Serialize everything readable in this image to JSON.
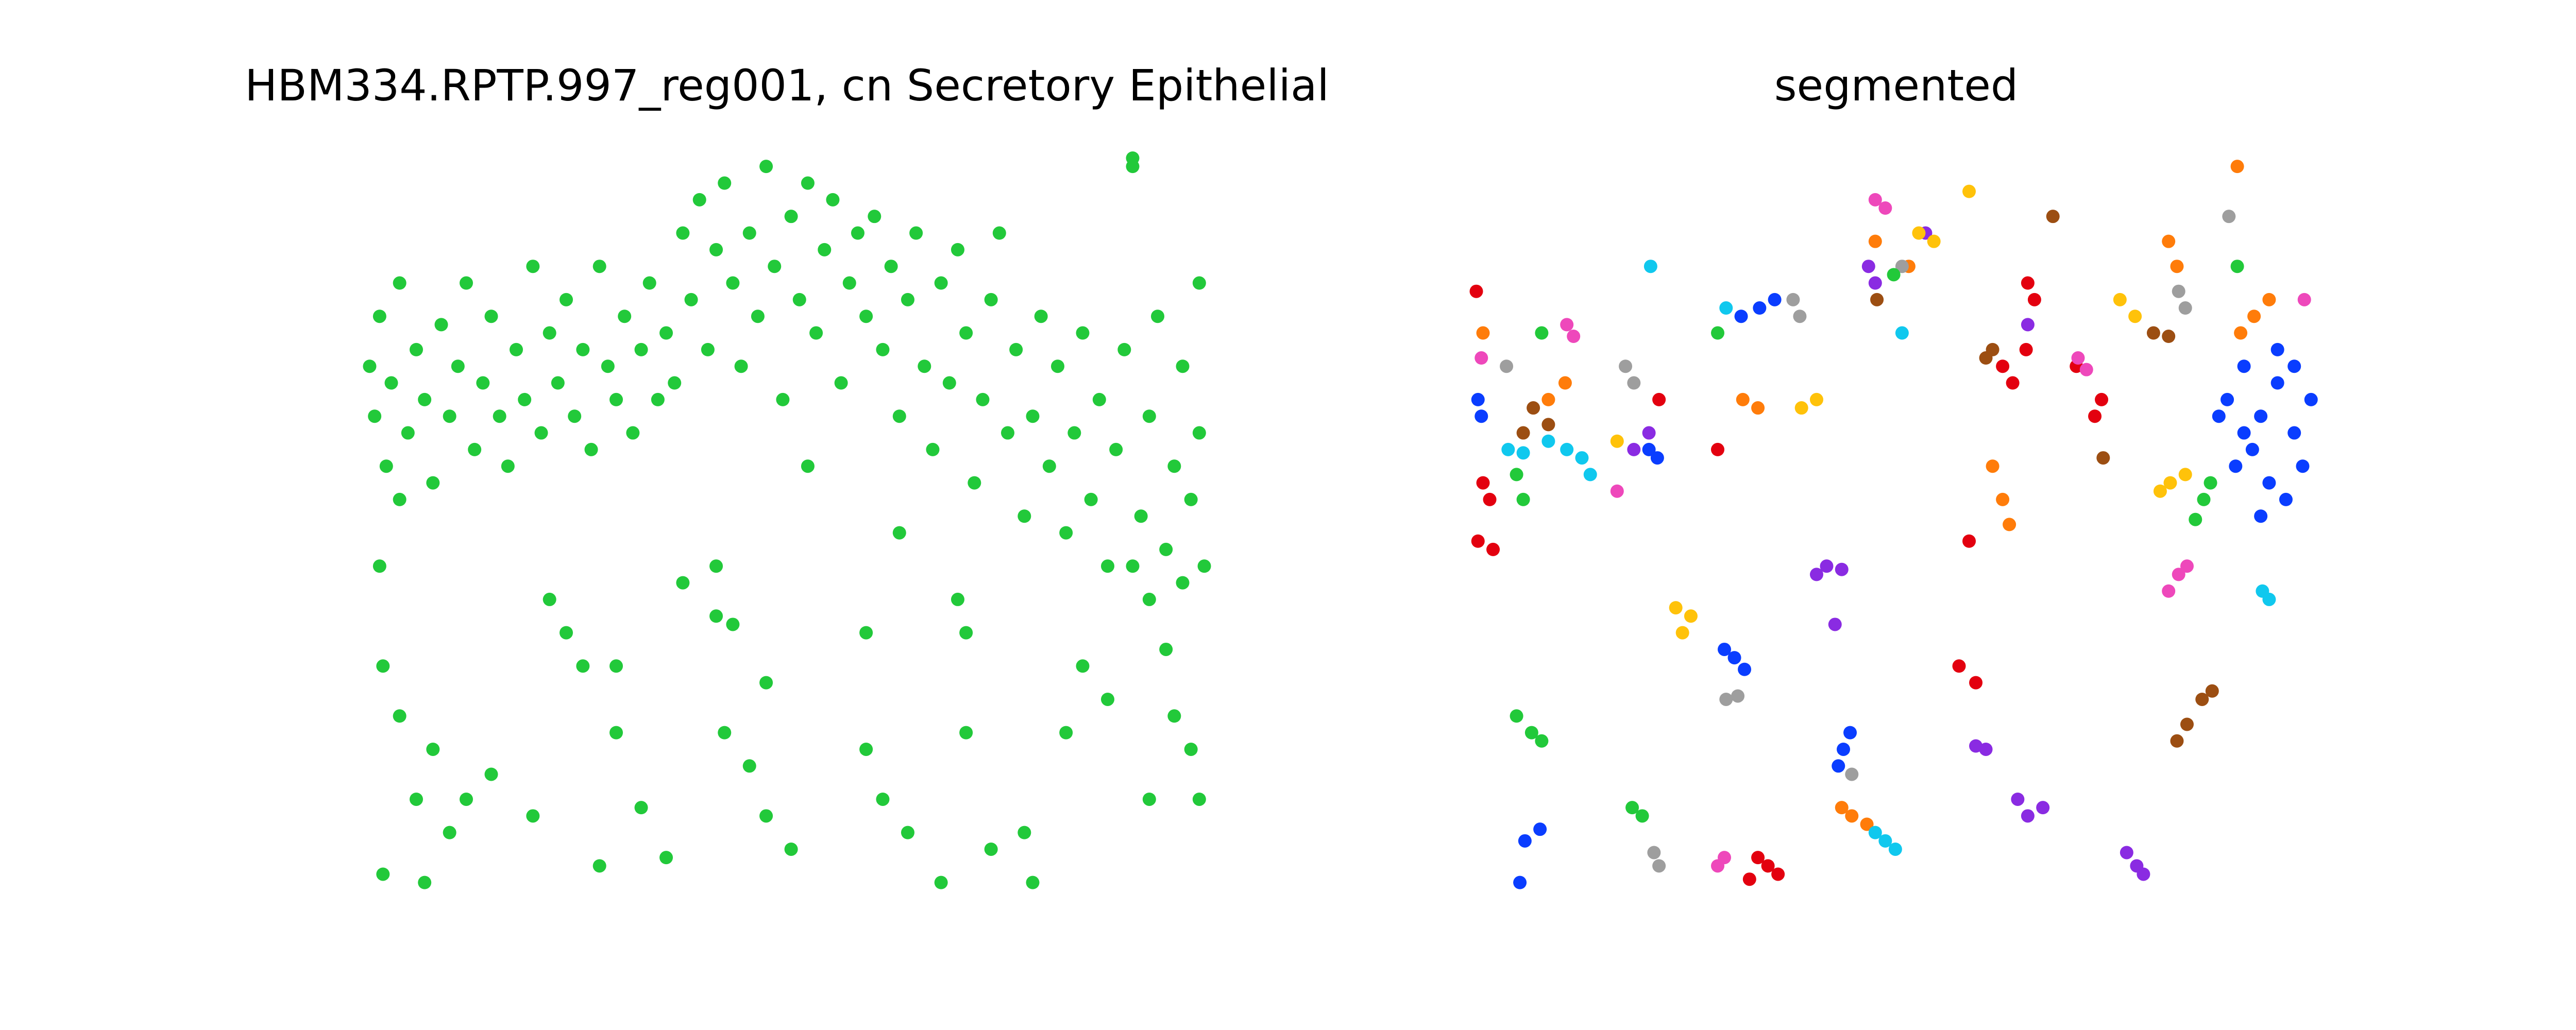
{
  "chart_data": [
    {
      "type": "scatter",
      "title": "HBM334.RPTP.997_reg001, cn Secretory Epithelial",
      "xlim": [
        0,
        505
      ],
      "ylim": [
        0,
        445
      ],
      "series": [
        {
          "color": "#22c93a",
          "x": [
            2,
            5,
            8,
            12,
            15,
            20,
            25,
            30,
            35,
            40,
            45,
            50,
            55,
            60,
            65,
            70,
            75,
            80,
            85,
            90,
            95,
            100,
            105,
            110,
            115,
            120,
            125,
            130,
            135,
            140,
            145,
            150,
            155,
            160,
            165,
            170,
            175,
            180,
            185,
            190,
            195,
            200,
            205,
            210,
            215,
            220,
            225,
            230,
            235,
            240,
            245,
            250,
            255,
            260,
            265,
            270,
            275,
            280,
            285,
            290,
            295,
            300,
            305,
            310,
            315,
            320,
            325,
            330,
            335,
            340,
            345,
            350,
            355,
            360,
            365,
            370,
            375,
            380,
            385,
            390,
            395,
            400,
            405,
            410,
            415,
            420,
            425,
            430,
            435,
            440,
            445,
            450,
            455,
            460,
            465,
            470,
            475,
            480,
            485,
            490,
            495,
            500,
            503,
            490,
            470,
            460,
            500,
            8,
            20,
            10,
            20,
            40,
            30,
            50,
            60,
            10,
            35,
            75,
            100,
            110,
            120,
            130,
            150,
            150,
            140,
            165,
            180,
            190,
            210,
            220,
            215,
            230,
            240,
            255,
            300,
            310,
            325,
            265,
            300,
            320,
            355,
            360,
            345,
            375,
            400,
            420,
            430,
            445,
            480,
            485,
            495,
            470,
            500,
            360,
            395,
            240,
            210,
            460
          ],
          "values": [
            320,
            290,
            350,
            260,
            310,
            370,
            280,
            330,
            300,
            250,
            345,
            290,
            320,
            370,
            270,
            310,
            350,
            290,
            260,
            330,
            300,
            380,
            280,
            340,
            310,
            360,
            290,
            330,
            270,
            380,
            320,
            300,
            350,
            280,
            330,
            370,
            300,
            340,
            310,
            400,
            360,
            420,
            330,
            390,
            430,
            370,
            320,
            400,
            350,
            440,
            380,
            300,
            410,
            360,
            430,
            340,
            390,
            420,
            310,
            370,
            400,
            350,
            410,
            330,
            380,
            290,
            360,
            400,
            320,
            270,
            370,
            310,
            390,
            340,
            250,
            300,
            360,
            400,
            280,
            330,
            230,
            290,
            350,
            260,
            320,
            220,
            280,
            340,
            240,
            300,
            200,
            270,
            330,
            440,
            230,
            290,
            350,
            210,
            260,
            320,
            240,
            280,
            200,
            190,
            180,
            200,
            370,
            200,
            240,
            140,
            110,
            90,
            60,
            40,
            60,
            15,
            10,
            75,
            50,
            180,
            160,
            140,
            140,
            100,
            20,
            55,
            25,
            190,
            200,
            165,
            100,
            80,
            50,
            30,
            90,
            60,
            40,
            260,
            160,
            220,
            180,
            160,
            10,
            30,
            10,
            100,
            140,
            120,
            150,
            110,
            90,
            60,
            60,
            100,
            40,
            130,
            170,
            445
          ]
        }
      ]
    },
    {
      "type": "scatter",
      "title": "segmented",
      "xlim": [
        0,
        505
      ],
      "ylim": [
        0,
        445
      ],
      "series": [
        {
          "color": "#0a3dff",
          "x": [
            450,
            460,
            470,
            480,
            490,
            500,
            455,
            465,
            475,
            485,
            495,
            470,
            480,
            460,
            490,
            445,
            156,
            162,
            150,
            221,
            225,
            218,
            31,
            40,
            28,
            171,
            180,
            160,
            3,
            5,
            105,
            110
          ],
          "values": [
            300,
            320,
            290,
            310,
            280,
            300,
            260,
            270,
            250,
            240,
            260,
            230,
            330,
            280,
            320,
            290,
            145,
            138,
            150,
            90,
            100,
            80,
            35,
            42,
            10,
            355,
            360,
            350,
            300,
            290,
            270,
            265
          ]
        },
        {
          "color": "#e3000f",
          "x": [
            6,
            10,
            3,
            12,
            176,
            170,
            182,
            165,
            316,
            322,
            371,
            375,
            331,
            335,
            111,
            146,
            296,
            300,
            290,
            360,
            330,
            2
          ],
          "values": [
            250,
            240,
            215,
            210,
            20,
            25,
            15,
            12,
            320,
            310,
            290,
            300,
            370,
            360,
            300,
            270,
            215,
            130,
            140,
            320,
            330,
            365
          ]
        },
        {
          "color": "#ff7c0a",
          "x": [
            226,
            235,
            220,
            316,
            320,
            310,
            456,
            466,
            475,
            458,
            161,
            170,
            6,
            45,
            55,
            260,
            240,
            415,
            420
          ],
          "values": [
            50,
            45,
            55,
            240,
            225,
            260,
            440,
            350,
            360,
            340,
            300,
            295,
            340,
            300,
            310,
            380,
            395,
            395,
            380
          ]
        },
        {
          "color": "#8a2be2",
          "x": [
            211,
            220,
            205,
            216,
            306,
            300,
            331,
            340,
            325,
            396,
            390,
            400,
            236,
            240,
            331,
            96,
            105,
            270
          ],
          "values": [
            200,
            198,
            195,
            165,
            90,
            92,
            50,
            55,
            60,
            20,
            28,
            15,
            380,
            370,
            345,
            270,
            280,
            400
          ]
        },
        {
          "color": "#9c4e12",
          "x": [
            36,
            45,
            30,
            241,
            306,
            310,
            406,
            415,
            426,
            420,
            441,
            435,
            376,
            346
          ],
          "values": [
            295,
            285,
            280,
            360,
            325,
            330,
            340,
            338,
            105,
            95,
            125,
            120,
            265,
            410
          ]
        },
        {
          "color": "#ee48bb",
          "x": [
            421,
            426,
            415,
            146,
            150,
            86,
            56,
            60,
            361,
            366,
            496,
            246,
            240,
            5
          ],
          "values": [
            195,
            200,
            185,
            20,
            25,
            245,
            345,
            338,
            325,
            318,
            360,
            415,
            420,
            325
          ]
        },
        {
          "color": "#9e9e9e",
          "x": [
            151,
            158,
            111,
            108,
            226,
            91,
            96,
            421,
            425,
            451,
            191,
            195,
            256,
            20
          ],
          "values": [
            120,
            122,
            20,
            28,
            75,
            320,
            310,
            365,
            355,
            410,
            360,
            350,
            380,
            320
          ]
        },
        {
          "color": "#ffc20a",
          "x": [
            121,
            130,
            125,
            416,
            425,
            410,
            196,
            205,
            266,
            275,
            386,
            395,
            296,
            86
          ],
          "values": [
            175,
            170,
            160,
            250,
            255,
            245,
            295,
            300,
            400,
            395,
            360,
            350,
            425,
            275
          ]
        },
        {
          "color": "#10c8ee",
          "x": [
            471,
            475,
            246,
            240,
            252,
            56,
            65,
            45,
            21,
            30,
            256,
            151,
            106,
            70
          ],
          "values": [
            185,
            180,
            35,
            40,
            30,
            270,
            265,
            275,
            270,
            268,
            340,
            355,
            380,
            255
          ]
        },
        {
          "color": "#22c93a",
          "x": [
            41,
            35,
            26,
            101,
            95,
            436,
            431,
            440,
            41,
            146,
            251,
            456,
            26,
            30
          ],
          "values": [
            95,
            100,
            110,
            50,
            55,
            240,
            228,
            250,
            340,
            340,
            375,
            380,
            255,
            240
          ]
        }
      ]
    }
  ]
}
